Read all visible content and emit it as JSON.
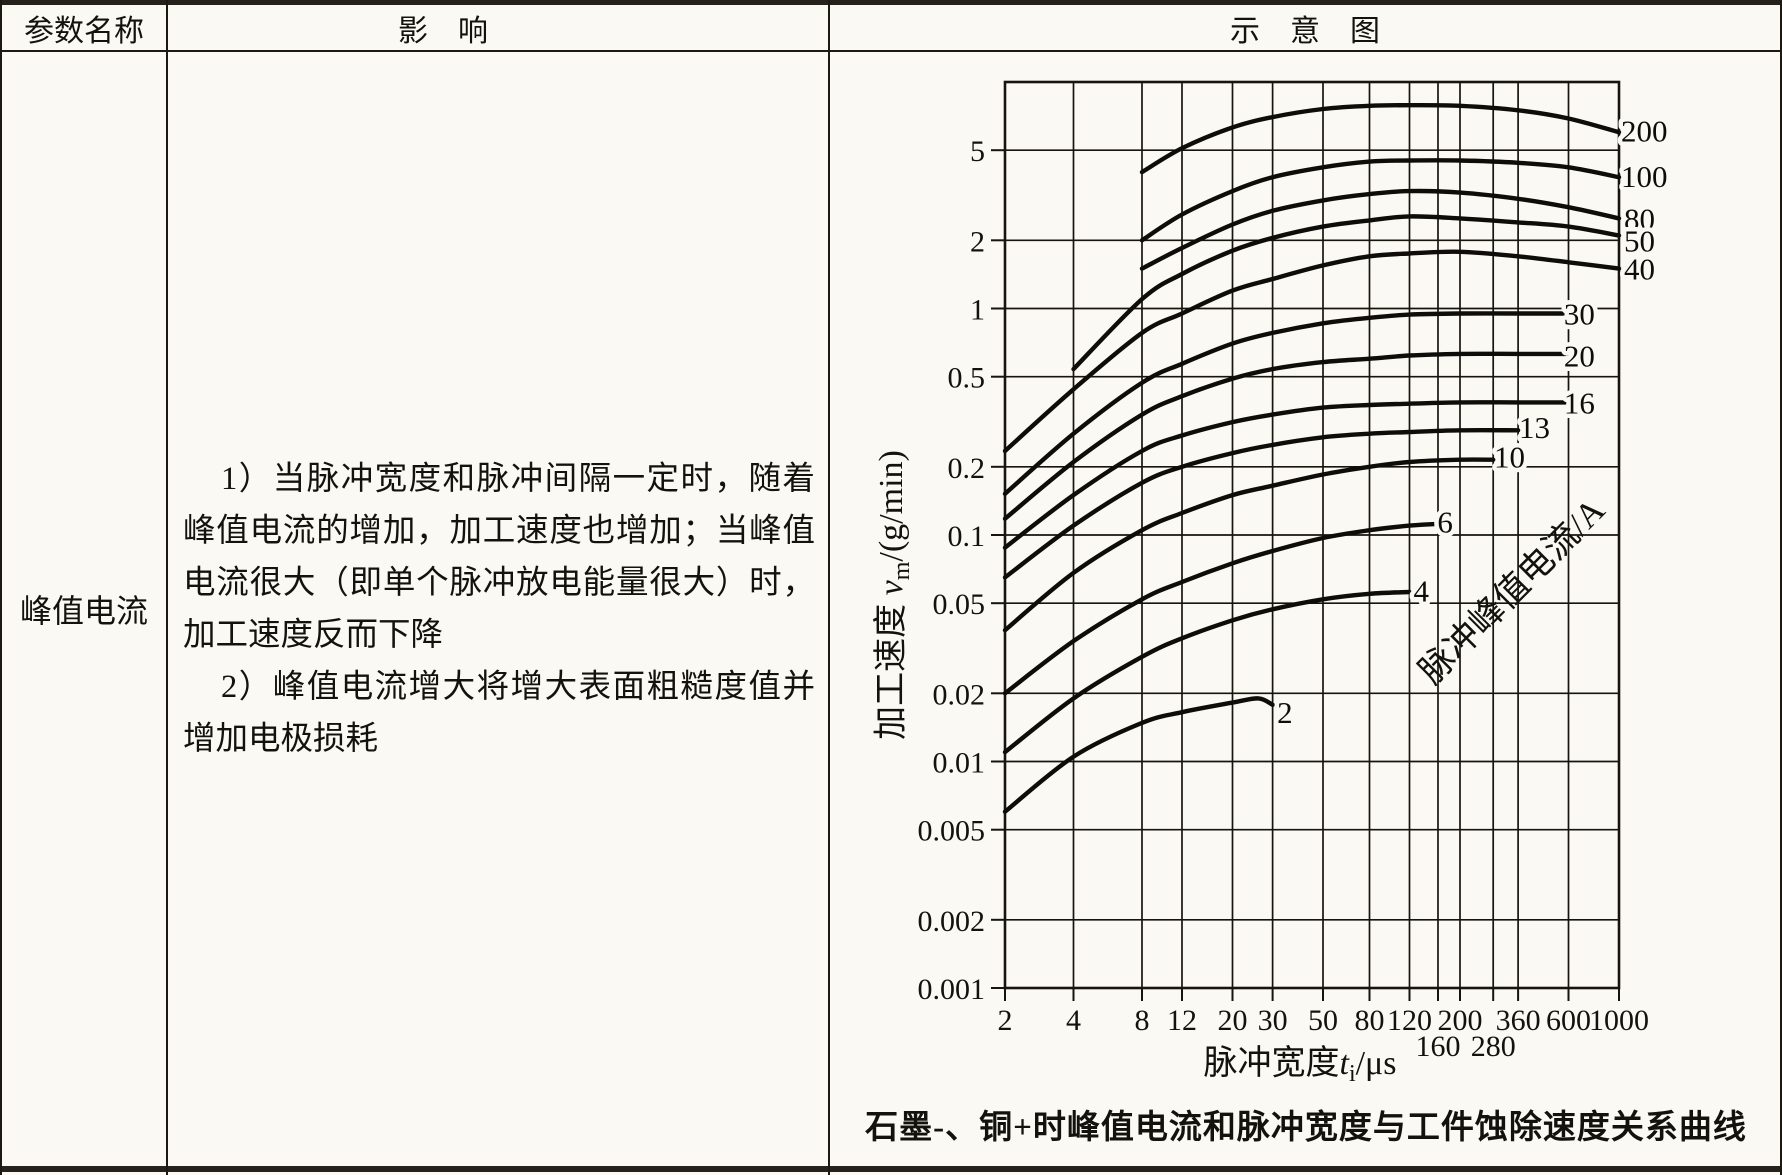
{
  "table": {
    "header": [
      "参数名称",
      "影　响",
      "示　意　图"
    ],
    "param_name": "峰值电流",
    "influence": [
      "1）当脉冲宽度和脉冲间隔一定时，随着峰值电流的增加，加工速度也增加；当峰值电流很大（即单个脉冲放电能量很大）时，加工速度反而下降",
      "2）峰值电流增大将增大表面粗糙度值并增加电极损耗"
    ]
  },
  "chart_data": {
    "type": "line",
    "x_scale": "log",
    "y_scale": "log",
    "xlim": [
      2,
      1000
    ],
    "ylim": [
      0.001,
      10
    ],
    "grid": "on",
    "legend_position": "labels-at-curve-ends",
    "xlabel": {
      "prefix": "脉冲宽度",
      "var": "t",
      "sub": "i",
      "unit": "/μs"
    },
    "ylabel": {
      "prefix": "加工速度 ",
      "var": "v",
      "sub": "m",
      "unit": "/(g/min)"
    },
    "series_family_label": "脉冲峰值电流/A",
    "caption": "石墨-、铜+时峰值电流和脉冲宽度与工件蚀除速度关系曲线",
    "x_gridlines": [
      2,
      4,
      8,
      12,
      20,
      30,
      50,
      80,
      120,
      160,
      200,
      280,
      360,
      600,
      1000
    ],
    "y_gridlines": [
      0.001,
      0.002,
      0.005,
      0.01,
      0.02,
      0.05,
      0.1,
      0.2,
      0.5,
      1,
      2,
      5,
      10
    ],
    "x_tick_labels_row1": [
      "2",
      "4",
      "8",
      "12",
      "20",
      "30",
      "50",
      "80",
      "120",
      "200",
      "360",
      "600",
      "1000"
    ],
    "x_tick_labels_row2": [
      "160",
      "280"
    ],
    "y_tick_labels": [
      "5",
      "2",
      "1",
      "0.5",
      "0.2",
      "0.1",
      "0.05",
      "0.02",
      "0.01",
      "0.005",
      "0.002",
      "0.001"
    ],
    "series": [
      {
        "name": "200",
        "label_at": [
          1290,
          6.1
        ],
        "points": [
          [
            8,
            4.0
          ],
          [
            12,
            5.1
          ],
          [
            20,
            6.3
          ],
          [
            30,
            7.0
          ],
          [
            50,
            7.6
          ],
          [
            80,
            7.85
          ],
          [
            120,
            7.9
          ],
          [
            200,
            7.85
          ],
          [
            360,
            7.5
          ],
          [
            600,
            6.9
          ],
          [
            1000,
            6.0
          ]
        ]
      },
      {
        "name": "100",
        "label_at": [
          1290,
          3.85
        ],
        "points": [
          [
            8,
            2.0
          ],
          [
            12,
            2.6
          ],
          [
            20,
            3.3
          ],
          [
            30,
            3.8
          ],
          [
            50,
            4.2
          ],
          [
            80,
            4.45
          ],
          [
            120,
            4.5
          ],
          [
            200,
            4.5
          ],
          [
            360,
            4.4
          ],
          [
            600,
            4.2
          ],
          [
            1000,
            3.8
          ]
        ]
      },
      {
        "name": "80",
        "label_at": [
          1230,
          2.5
        ],
        "points": [
          [
            8,
            1.5
          ],
          [
            12,
            1.85
          ],
          [
            20,
            2.35
          ],
          [
            30,
            2.7
          ],
          [
            50,
            3.0
          ],
          [
            80,
            3.2
          ],
          [
            120,
            3.3
          ],
          [
            200,
            3.25
          ],
          [
            360,
            3.05
          ],
          [
            600,
            2.8
          ],
          [
            1000,
            2.5
          ]
        ]
      },
      {
        "name": "50",
        "label_at": [
          1230,
          2.0
        ],
        "points": [
          [
            4,
            0.54
          ],
          [
            8,
            1.1
          ],
          [
            12,
            1.42
          ],
          [
            20,
            1.8
          ],
          [
            30,
            2.05
          ],
          [
            50,
            2.3
          ],
          [
            80,
            2.45
          ],
          [
            120,
            2.55
          ],
          [
            200,
            2.5
          ],
          [
            360,
            2.4
          ],
          [
            600,
            2.3
          ],
          [
            1000,
            2.1
          ]
        ]
      },
      {
        "name": "40",
        "label_at": [
          1230,
          1.5
        ],
        "points": [
          [
            2,
            0.235
          ],
          [
            4,
            0.44
          ],
          [
            8,
            0.78
          ],
          [
            12,
            0.95
          ],
          [
            20,
            1.2
          ],
          [
            30,
            1.35
          ],
          [
            50,
            1.55
          ],
          [
            80,
            1.7
          ],
          [
            120,
            1.75
          ],
          [
            200,
            1.78
          ],
          [
            360,
            1.7
          ],
          [
            600,
            1.6
          ],
          [
            1000,
            1.5
          ]
        ]
      },
      {
        "name": "30",
        "label_at": [
          670,
          0.95
        ],
        "points": [
          [
            2,
            0.152
          ],
          [
            4,
            0.28
          ],
          [
            8,
            0.47
          ],
          [
            12,
            0.57
          ],
          [
            20,
            0.7
          ],
          [
            30,
            0.78
          ],
          [
            50,
            0.86
          ],
          [
            80,
            0.91
          ],
          [
            120,
            0.94
          ],
          [
            200,
            0.95
          ],
          [
            360,
            0.95
          ],
          [
            580,
            0.95
          ]
        ]
      },
      {
        "name": "20",
        "label_at": [
          670,
          0.62
        ],
        "points": [
          [
            2,
            0.118
          ],
          [
            4,
            0.21
          ],
          [
            8,
            0.34
          ],
          [
            12,
            0.41
          ],
          [
            20,
            0.49
          ],
          [
            30,
            0.54
          ],
          [
            50,
            0.58
          ],
          [
            80,
            0.6
          ],
          [
            120,
            0.62
          ],
          [
            200,
            0.63
          ],
          [
            360,
            0.63
          ],
          [
            580,
            0.63
          ]
        ]
      },
      {
        "name": "16",
        "label_at": [
          670,
          0.385
        ],
        "points": [
          [
            2,
            0.088
          ],
          [
            4,
            0.15
          ],
          [
            8,
            0.235
          ],
          [
            12,
            0.275
          ],
          [
            20,
            0.315
          ],
          [
            30,
            0.34
          ],
          [
            50,
            0.365
          ],
          [
            80,
            0.375
          ],
          [
            120,
            0.38
          ],
          [
            200,
            0.385
          ],
          [
            360,
            0.385
          ],
          [
            580,
            0.385
          ]
        ]
      },
      {
        "name": "13",
        "label_at": [
          425,
          0.3
        ],
        "points": [
          [
            2,
            0.065
          ],
          [
            4,
            0.11
          ],
          [
            8,
            0.17
          ],
          [
            12,
            0.2
          ],
          [
            20,
            0.23
          ],
          [
            30,
            0.25
          ],
          [
            50,
            0.27
          ],
          [
            80,
            0.28
          ],
          [
            120,
            0.285
          ],
          [
            200,
            0.29
          ],
          [
            360,
            0.29
          ]
        ]
      },
      {
        "name": "10",
        "label_at": [
          330,
          0.222
        ],
        "points": [
          [
            2,
            0.038
          ],
          [
            4,
            0.068
          ],
          [
            8,
            0.105
          ],
          [
            12,
            0.125
          ],
          [
            20,
            0.15
          ],
          [
            30,
            0.165
          ],
          [
            50,
            0.185
          ],
          [
            80,
            0.2
          ],
          [
            120,
            0.21
          ],
          [
            200,
            0.215
          ],
          [
            280,
            0.215
          ]
        ]
      },
      {
        "name": "6",
        "label_at": [
          172,
          0.115
        ],
        "points": [
          [
            2,
            0.02
          ],
          [
            4,
            0.034
          ],
          [
            8,
            0.052
          ],
          [
            12,
            0.062
          ],
          [
            20,
            0.075
          ],
          [
            30,
            0.085
          ],
          [
            50,
            0.097
          ],
          [
            80,
            0.105
          ],
          [
            120,
            0.11
          ],
          [
            160,
            0.112
          ]
        ]
      },
      {
        "name": "4",
        "label_at": [
          135,
          0.057
        ],
        "points": [
          [
            2,
            0.011
          ],
          [
            4,
            0.019
          ],
          [
            8,
            0.029
          ],
          [
            12,
            0.035
          ],
          [
            20,
            0.042
          ],
          [
            30,
            0.047
          ],
          [
            50,
            0.052
          ],
          [
            80,
            0.055
          ],
          [
            120,
            0.056
          ]
        ]
      },
      {
        "name": "2",
        "label_at": [
          34,
          0.0165
        ],
        "points": [
          [
            2,
            0.006
          ],
          [
            4,
            0.0105
          ],
          [
            8,
            0.0148
          ],
          [
            12,
            0.0165
          ],
          [
            20,
            0.0182
          ],
          [
            26,
            0.019
          ],
          [
            30,
            0.0178
          ]
        ]
      }
    ]
  }
}
